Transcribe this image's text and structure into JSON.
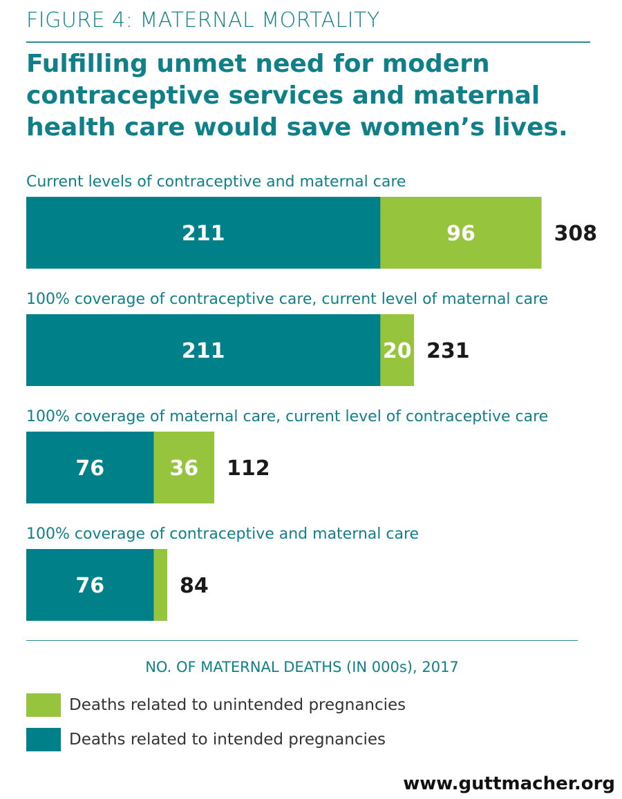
{
  "figure_label": "FIGURE 4: MATERNAL MORTALITY",
  "headline": "Fulfilling unmet need for modern contraceptive services and maternal health care would save women’s lives.",
  "colors": {
    "intended": "#008089",
    "unintended": "#96c43d",
    "teal_text": "#0f8089",
    "total_text": "#1a1a1a"
  },
  "chart_data": {
    "type": "bar",
    "orientation": "horizontal",
    "stacked": true,
    "categories": [
      "Current levels of contraceptive and maternal care",
      "100% coverage of contraceptive care, current level of maternal care",
      "100% coverage of maternal care, current level of contraceptive care",
      "100% coverage of contraceptive and maternal care"
    ],
    "series": [
      {
        "name": "Deaths related to intended pregnancies",
        "color": "#008089",
        "values": [
          211,
          211,
          76,
          76
        ],
        "labels": [
          "211",
          "211",
          "76",
          "76"
        ]
      },
      {
        "name": "Deaths related to unintended pregnancies",
        "color": "#96c43d",
        "values": [
          96,
          20,
          36,
          8
        ],
        "labels": [
          "96",
          "20",
          "36",
          ""
        ]
      }
    ],
    "totals": [
      "308",
      "231",
      "112",
      "84"
    ],
    "xlabel": "NO. OF MATERNAL DEATHS (IN 000s), 2017",
    "xlim": [
      0,
      308
    ],
    "grid": false,
    "legend_position": "bottom-left"
  },
  "legend": [
    {
      "label": "Deaths related to unintended pregnancies",
      "color": "#96c43d"
    },
    {
      "label": "Deaths related to intended pregnancies",
      "color": "#008089"
    }
  ],
  "footer": "www.guttmacher.org"
}
